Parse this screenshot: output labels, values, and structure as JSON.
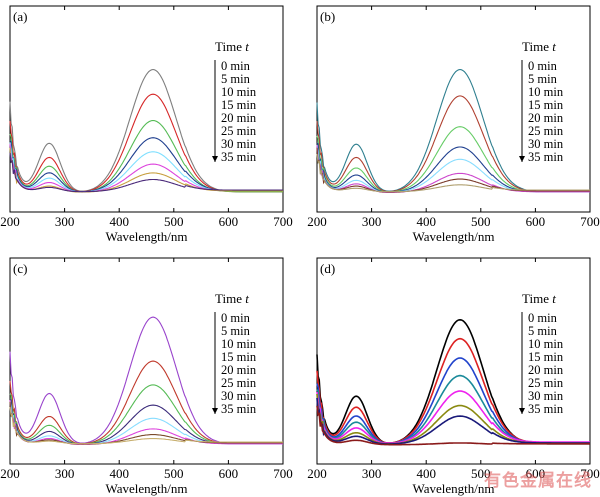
{
  "legend_title": "Time",
  "legend_var": "t",
  "watermark": "有色金属在线",
  "chart_data": [
    {
      "type": "line",
      "panel": "(a)",
      "xlabel": "Wavelength/nm",
      "ylabel": "",
      "xlim": [
        200,
        700
      ],
      "xticks": [
        200,
        300,
        400,
        500,
        600,
        700
      ],
      "grid": false,
      "legend_position": "top-right",
      "series": [
        {
          "name": "0 min",
          "color": "#7f7f7f",
          "peak1": 0.56,
          "peak2": 1.4,
          "tail": 0.02
        },
        {
          "name": "5 min",
          "color": "#d62728",
          "peak1": 0.4,
          "peak2": 1.12,
          "tail": 0.02
        },
        {
          "name": "10 min",
          "color": "#55bb55",
          "peak1": 0.3,
          "peak2": 0.82,
          "tail": 0.02
        },
        {
          "name": "15 min",
          "color": "#1f3f8f",
          "peak1": 0.22,
          "peak2": 0.62,
          "tail": 0.03
        },
        {
          "name": "20 min",
          "color": "#7fdfff",
          "peak1": 0.16,
          "peak2": 0.46,
          "tail": 0.03
        },
        {
          "name": "25 min",
          "color": "#dd44dd",
          "peak1": 0.11,
          "peak2": 0.32,
          "tail": 0.03
        },
        {
          "name": "30 min",
          "color": "#c8a040",
          "peak1": 0.07,
          "peak2": 0.22,
          "tail": 0.03
        },
        {
          "name": "35 min",
          "color": "#4b2a7a",
          "peak1": 0.05,
          "peak2": 0.14,
          "tail": 0.04
        }
      ]
    },
    {
      "type": "line",
      "panel": "(b)",
      "xlabel": "Wavelength/nm",
      "ylabel": "",
      "xlim": [
        200,
        700
      ],
      "xticks": [
        200,
        300,
        400,
        500,
        600,
        700
      ],
      "grid": false,
      "legend_position": "top-right",
      "series": [
        {
          "name": "0 min",
          "color": "#2f7f8f",
          "peak1": 0.55,
          "peak2": 1.4,
          "tail": 0.02
        },
        {
          "name": "5 min",
          "color": "#b04030",
          "peak1": 0.4,
          "peak2": 1.1,
          "tail": 0.02
        },
        {
          "name": "10 min",
          "color": "#66cc66",
          "peak1": 0.28,
          "peak2": 0.75,
          "tail": 0.02
        },
        {
          "name": "15 min",
          "color": "#1f3f8f",
          "peak1": 0.2,
          "peak2": 0.52,
          "tail": 0.02
        },
        {
          "name": "20 min",
          "color": "#88ddff",
          "peak1": 0.14,
          "peak2": 0.38,
          "tail": 0.02
        },
        {
          "name": "25 min",
          "color": "#cc44cc",
          "peak1": 0.1,
          "peak2": 0.22,
          "tail": 0.02
        },
        {
          "name": "30 min",
          "color": "#7a3a2a",
          "peak1": 0.07,
          "peak2": 0.15,
          "tail": 0.03
        },
        {
          "name": "35 min",
          "color": "#b0a070",
          "peak1": 0.04,
          "peak2": 0.08,
          "tail": 0.04
        }
      ]
    },
    {
      "type": "line",
      "panel": "(c)",
      "xlabel": "Wavelength/nm",
      "ylabel": "",
      "xlim": [
        200,
        700
      ],
      "xticks": [
        200,
        300,
        400,
        500,
        600,
        700
      ],
      "grid": false,
      "legend_position": "top-right",
      "series": [
        {
          "name": "0 min",
          "color": "#9944cc",
          "peak1": 0.58,
          "peak2": 1.45,
          "tail": 0.02
        },
        {
          "name": "5 min",
          "color": "#c0392b",
          "peak1": 0.32,
          "peak2": 0.95,
          "tail": 0.02
        },
        {
          "name": "10 min",
          "color": "#55bb55",
          "peak1": 0.22,
          "peak2": 0.68,
          "tail": 0.02
        },
        {
          "name": "15 min",
          "color": "#3a2a7a",
          "peak1": 0.15,
          "peak2": 0.45,
          "tail": 0.02
        },
        {
          "name": "20 min",
          "color": "#88ddff",
          "peak1": 0.1,
          "peak2": 0.3,
          "tail": 0.02
        },
        {
          "name": "25 min",
          "color": "#dd44dd",
          "peak1": 0.07,
          "peak2": 0.18,
          "tail": 0.02
        },
        {
          "name": "30 min",
          "color": "#7a4a2a",
          "peak1": 0.05,
          "peak2": 0.11,
          "tail": 0.03
        },
        {
          "name": "35 min",
          "color": "#c8b070",
          "peak1": 0.03,
          "peak2": 0.06,
          "tail": 0.04
        }
      ]
    },
    {
      "type": "line",
      "panel": "(d)",
      "xlabel": "Wavelength/nm",
      "ylabel": "",
      "xlim": [
        200,
        700
      ],
      "xticks": [
        200,
        300,
        400,
        500,
        600,
        700
      ],
      "grid": false,
      "legend_position": "top-right",
      "series": [
        {
          "name": "0 min",
          "color": "#000000",
          "peak1": 0.55,
          "peak2": 1.42,
          "tail": 0.02
        },
        {
          "name": "5 min",
          "color": "#dd2222",
          "peak1": 0.42,
          "peak2": 1.2,
          "tail": 0.03
        },
        {
          "name": "10 min",
          "color": "#2244cc",
          "peak1": 0.32,
          "peak2": 0.98,
          "tail": 0.03
        },
        {
          "name": "15 min",
          "color": "#1a8a9a",
          "peak1": 0.25,
          "peak2": 0.78,
          "tail": 0.03
        },
        {
          "name": "20 min",
          "color": "#ee22ee",
          "peak1": 0.18,
          "peak2": 0.6,
          "tail": 0.04
        },
        {
          "name": "25 min",
          "color": "#8a8a10",
          "peak1": 0.13,
          "peak2": 0.44,
          "tail": 0.03
        },
        {
          "name": "30 min",
          "color": "#1a1a7a",
          "peak1": 0.09,
          "peak2": 0.32,
          "tail": 0.03
        },
        {
          "name": "35 min",
          "color": "#8a1a1a",
          "peak1": 0.05,
          "peak2": 0.02,
          "tail": 0.02
        }
      ]
    }
  ]
}
